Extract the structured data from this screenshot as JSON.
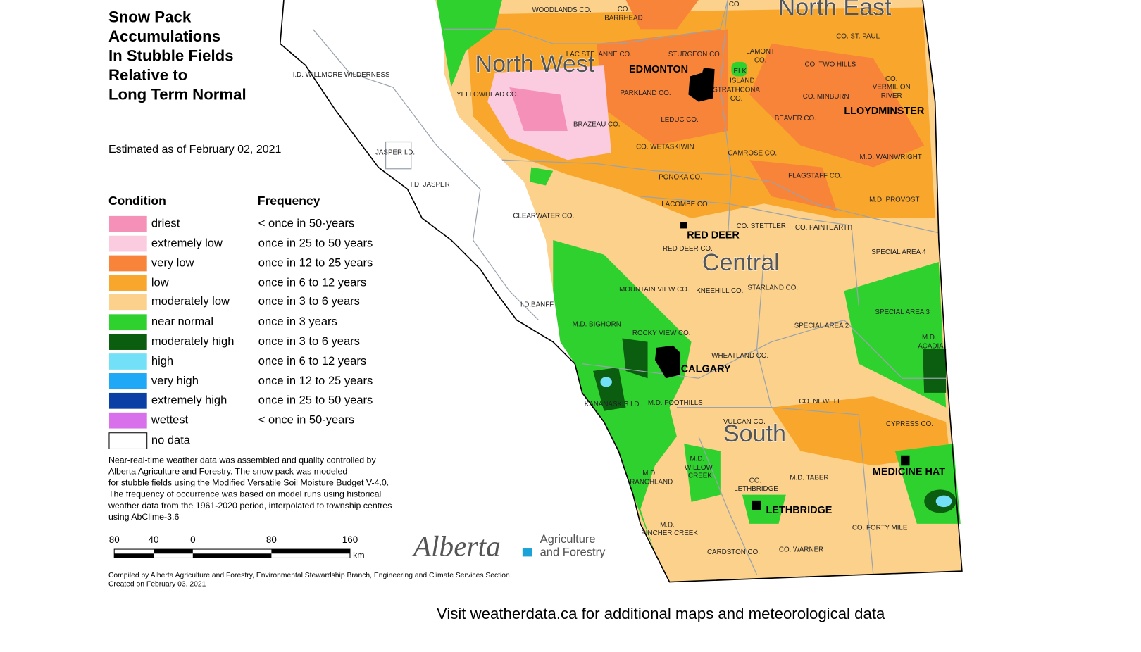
{
  "title": [
    "Snow Pack",
    "Accumulations",
    "In Stubble Fields",
    "Relative to",
    "Long Term Normal"
  ],
  "estimate": "Estimated as of February 02, 2021",
  "legend": {
    "condition_header": "Condition",
    "frequency_header": "Frequency",
    "items": [
      {
        "label": "driest",
        "frequency": "< once in 50-years",
        "color": "#f590b8"
      },
      {
        "label": "extremely low",
        "frequency": "once in 25 to 50 years",
        "color": "#fbcbe0"
      },
      {
        "label": "very low",
        "frequency": "once in 12 to 25 years",
        "color": "#f8843a"
      },
      {
        "label": "low",
        "frequency": "once in 6 to 12 years",
        "color": "#f9a72c"
      },
      {
        "label": "moderately low",
        "frequency": "once in 3 to 6 years",
        "color": "#fbd18c"
      },
      {
        "label": "near normal",
        "frequency": "once in 3 years",
        "color": "#2fd12f"
      },
      {
        "label": "moderately high",
        "frequency": "once in 3 to 6 years",
        "color": "#0b5e0f"
      },
      {
        "label": "high",
        "frequency": "once in 6 to 12 years",
        "color": "#72e0f7"
      },
      {
        "label": "very high",
        "frequency": "once in 12 to 25 years",
        "color": "#1ea8f5"
      },
      {
        "label": "extremely high",
        "frequency": "once in 25 to 50 years",
        "color": "#0a3fa6"
      },
      {
        "label": "wettest",
        "frequency": "< once in 50-years",
        "color": "#d770ea"
      },
      {
        "label": "no data",
        "frequency": null,
        "color": "#ffffff"
      }
    ]
  },
  "note": [
    "Near-real-time weather data was assembled and quality controlled by",
    "Alberta Agriculture and Forestry.  The snow pack was modeled",
    "for stubble fields using the Modified Versatile Soil Moisture Budget V-4.0.",
    "The frequency of occurrence was based on model runs using historical",
    "weather data from the 1961-2020 period, interpolated to township centres",
    "using AbClime-3.6"
  ],
  "scale_bar": {
    "labels": [
      "80",
      "40",
      "0",
      "80",
      "160"
    ],
    "unit": "km"
  },
  "logo": {
    "name": "Alberta",
    "line1": "Agriculture",
    "line2": "and Forestry"
  },
  "credits": [
    "Compiled by Alberta Agriculture and Forestry, Environmental Stewardship Branch, Engineering and Climate Services Section",
    "Created on February 03, 2021"
  ],
  "footer": "Visit weatherdata.ca for additional maps and meteorological data",
  "map": {
    "regions": [
      "North West",
      "North East",
      "Central",
      "South"
    ],
    "cities": [
      "EDMONTON",
      "LLOYDMINSTER",
      "RED DEER",
      "CALGARY",
      "MEDICINE HAT",
      "LETHBRIDGE"
    ],
    "labels": [
      "CO.",
      "BARRHEAD",
      "WOODLANDS CO.",
      "CO.",
      "LAC STE. ANNE CO.",
      "STURGEON CO.",
      "LAMONT",
      "CO.",
      "ELK",
      "ISLAND",
      "STRATHCONA",
      "CO.",
      "I.D. WILLMORE WILDERNESS",
      "YELLOWHEAD CO.",
      "PARKLAND CO.",
      "CO. ST. PAUL",
      "CO. TWO HILLS",
      "CO.",
      "VERMILION",
      "RIVER",
      "CO. MINBURN",
      "BEAVER CO.",
      "LEDUC CO.",
      "BRAZEAU CO.",
      "JASPER I.D.",
      "CO. WETASKIWIN",
      "CAMROSE CO.",
      "M.D. WAINWRIGHT",
      "FLAGSTAFF CO.",
      "PONOKA CO.",
      "I.D. JASPER",
      "M.D. PROVOST",
      "LACOMBE CO.",
      "CLEARWATER CO.",
      "CO. STETTLER",
      "CO. PAINTEARTH",
      "RED DEER CO.",
      "SPECIAL AREA 4",
      "MOUNTAIN VIEW CO.",
      "KNEEHILL CO.",
      "STARLAND CO.",
      "I.D.BANFF",
      "SPECIAL AREA 3",
      "M.D. BIGHORN",
      "SPECIAL AREA 2",
      "ROCKY VIEW CO.",
      "M.D.",
      "ACADIA",
      "WHEATLAND CO.",
      "KANANASKIS I.D.",
      "M.D. FOOTHILLS",
      "CO. NEWELL",
      "VULCAN CO.",
      "CYPRESS CO.",
      "M.D.",
      "WILLOW",
      "CREEK",
      "M.D.",
      "RANCHLAND",
      "CO.",
      "LETHBRIDGE",
      "M.D. TABER",
      "CO. FORTY MILE",
      "M.D.",
      "PINCHER CREEK",
      "CARDSTON CO.",
      "CO. WARNER"
    ]
  }
}
